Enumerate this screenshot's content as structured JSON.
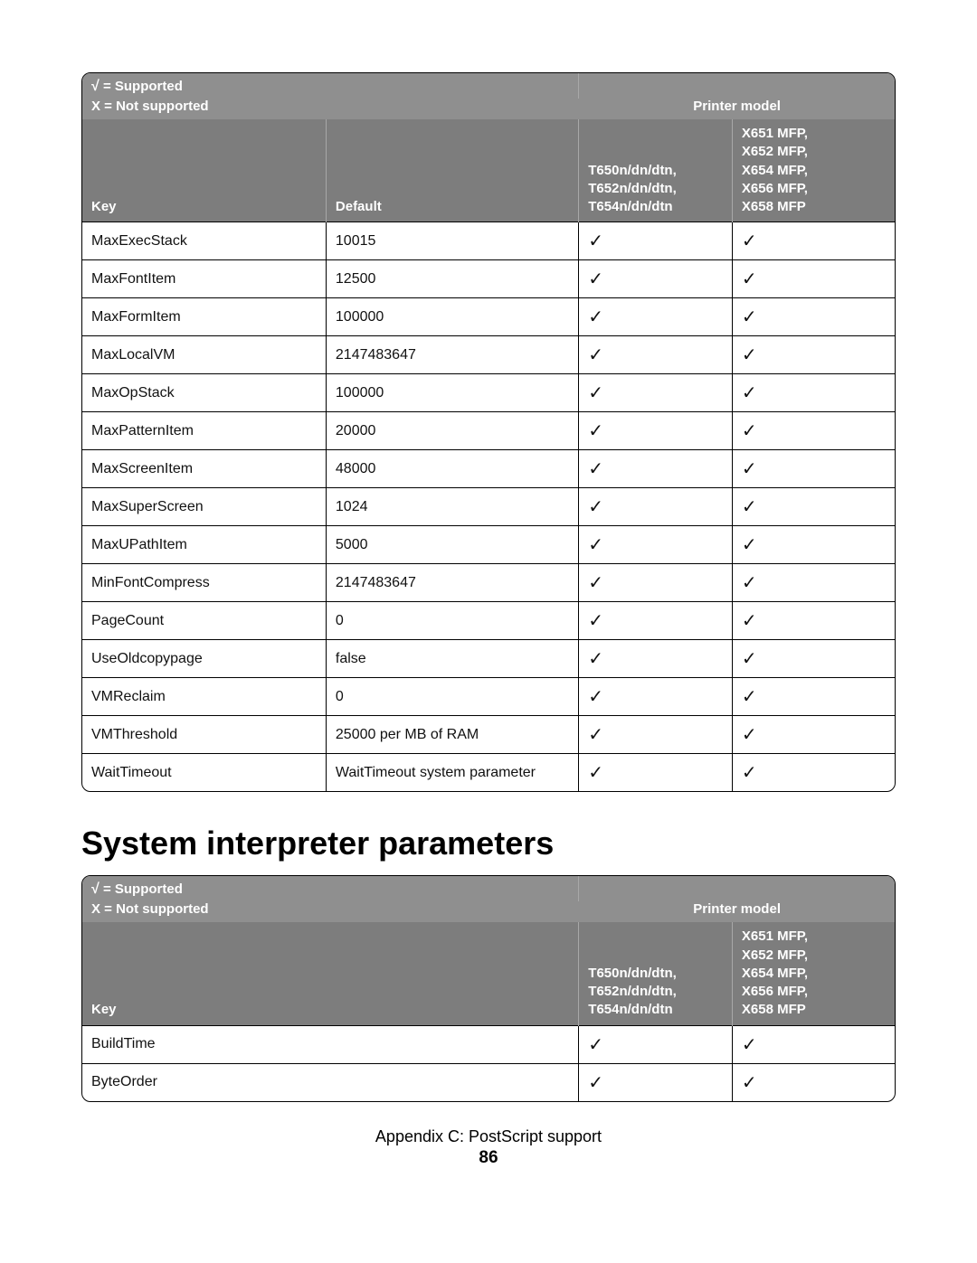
{
  "legend": {
    "supported": "= Supported",
    "notSupported": "X = Not supported",
    "printerModel": "Printer model"
  },
  "columns": {
    "key": "Key",
    "default": "Default",
    "model1": "T650n/dn/dtn,\nT652n/dn/dtn,\nT654n/dn/dtn",
    "model2": "X651 MFP,\nX652 MFP,\nX654 MFP,\nX656 MFP,\nX658 MFP"
  },
  "table1": {
    "rows": [
      {
        "key": "MaxExecStack",
        "def": "10015",
        "m1": "check",
        "m2": "check"
      },
      {
        "key": "MaxFontItem",
        "def": "12500",
        "m1": "check",
        "m2": "check"
      },
      {
        "key": "MaxFormItem",
        "def": "100000",
        "m1": "check",
        "m2": "check"
      },
      {
        "key": "MaxLocalVM",
        "def": "2147483647",
        "m1": "check",
        "m2": "check"
      },
      {
        "key": "MaxOpStack",
        "def": "100000",
        "m1": "check",
        "m2": "check"
      },
      {
        "key": "MaxPatternItem",
        "def": "20000",
        "m1": "check",
        "m2": "check"
      },
      {
        "key": "MaxScreenItem",
        "def": "48000",
        "m1": "check",
        "m2": "check"
      },
      {
        "key": "MaxSuperScreen",
        "def": "1024",
        "m1": "check",
        "m2": "check"
      },
      {
        "key": "MaxUPathItem",
        "def": "5000",
        "m1": "check",
        "m2": "check"
      },
      {
        "key": "MinFontCompress",
        "def": "2147483647",
        "m1": "check",
        "m2": "check"
      },
      {
        "key": "PageCount",
        "def": "0",
        "m1": "check",
        "m2": "check"
      },
      {
        "key": "UseOldcopypage",
        "def": "false",
        "m1": "check",
        "m2": "check"
      },
      {
        "key": "VMReclaim",
        "def": "0",
        "m1": "check",
        "m2": "check"
      },
      {
        "key": "VMThreshold",
        "def": "25000 per MB of RAM",
        "m1": "check",
        "m2": "check"
      },
      {
        "key": "WaitTimeout",
        "def": "WaitTimeout system parameter",
        "m1": "check",
        "m2": "check"
      }
    ]
  },
  "sectionTitle": "System interpreter parameters",
  "table2": {
    "rows": [
      {
        "key": "BuildTime",
        "m1": "check",
        "m2": "check"
      },
      {
        "key": "ByteOrder",
        "m1": "check",
        "m2": "check"
      }
    ]
  },
  "footer": {
    "appendix": "Appendix C: PostScript support",
    "page": "86"
  }
}
